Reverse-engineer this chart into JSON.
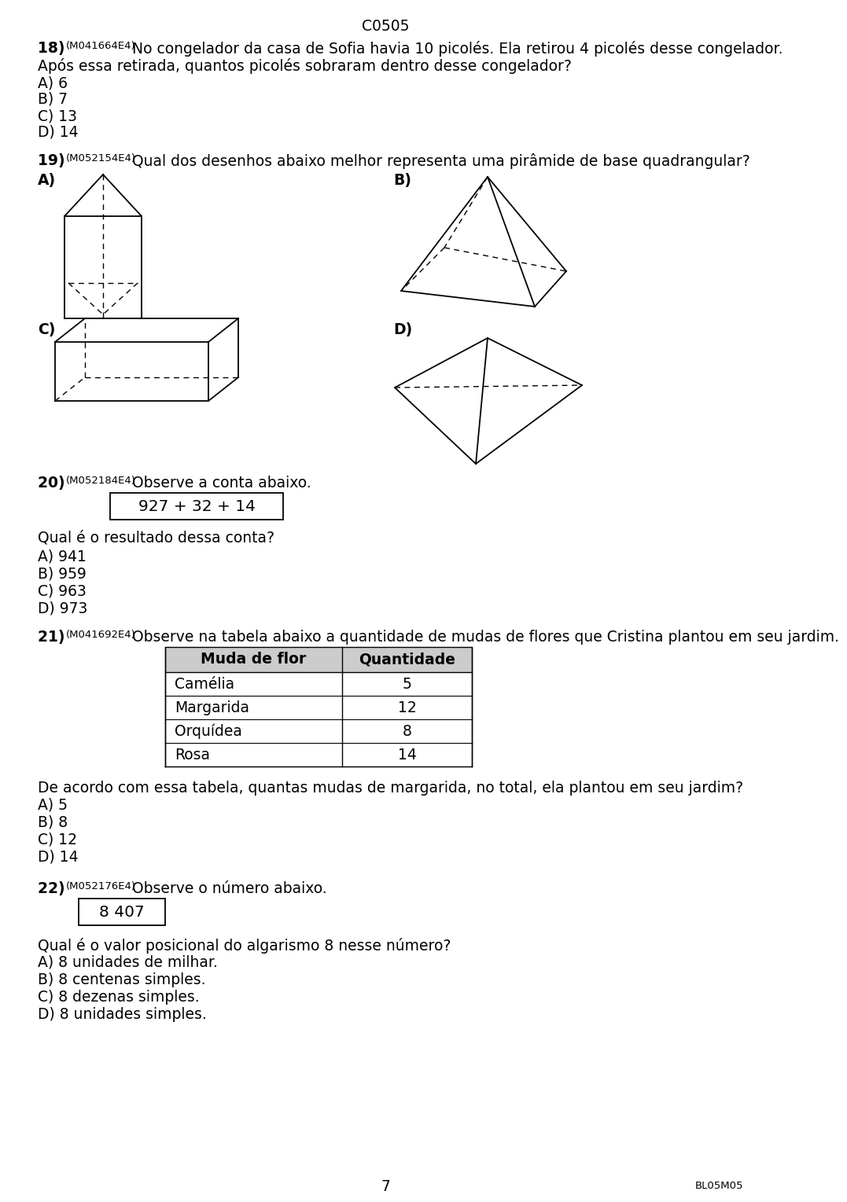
{
  "page_code": "C0505",
  "bg_color": "#ffffff",
  "text_color": "#000000",
  "fs": 13.5,
  "fs_small": 9.5,
  "lm": 38,
  "q18_num": "18) ",
  "q18_code": "(M041664E4)",
  "q18_line1": " No congelador da casa de Sofia havia 10 picolés. Ela retirou 4 picolés desse congelador.",
  "q18_line2": "Após essa retirada, quantos picolés sobraram dentro desse congelador?",
  "q18_answers": [
    "A) 6",
    "B) 7",
    "C) 13",
    "D) 14"
  ],
  "q19_num": "19) ",
  "q19_code": "(M052154E4)",
  "q19_rest": " Qual dos desenhos abaixo melhor representa uma pirâmide de base quadrangular?",
  "q20_num": "20) ",
  "q20_code": "(M052184E4)",
  "q20_rest": " Observe a conta abaixo.",
  "q20_box": "927 + 32 + 14",
  "q20_question": "Qual é o resultado dessa conta?",
  "q20_answers": [
    "A) 941",
    "B) 959",
    "C) 963",
    "D) 973"
  ],
  "q21_num": "21) ",
  "q21_code": "(M041692E4)",
  "q21_rest": " Observe na tabela abaixo a quantidade de mudas de flores que Cristina plantou em seu jardim.",
  "table_header": [
    "Muda de flor",
    "Quantidade"
  ],
  "table_rows": [
    [
      "Camélia",
      "5"
    ],
    [
      "Margarida",
      "12"
    ],
    [
      "Orquídea",
      "8"
    ],
    [
      "Rosa",
      "14"
    ]
  ],
  "q21_question": "De acordo com essa tabela, quantas mudas de margarida, no total, ela plantou em seu jardim?",
  "q21_answers": [
    "A) 5",
    "B) 8",
    "C) 12",
    "D) 14"
  ],
  "q22_num": "22) ",
  "q22_code": "(M052176E4)",
  "q22_rest": " Observe o número abaixo.",
  "q22_box": "8 407",
  "q22_question": "Qual é o valor posicional do algarismo 8 nesse número?",
  "q22_answers": [
    "A) 8 unidades de milhar.",
    "B) 8 centenas simples.",
    "C) 8 dezenas simples.",
    "D) 8 unidades simples."
  ],
  "page_number": "7",
  "footer_code": "BL05M05"
}
